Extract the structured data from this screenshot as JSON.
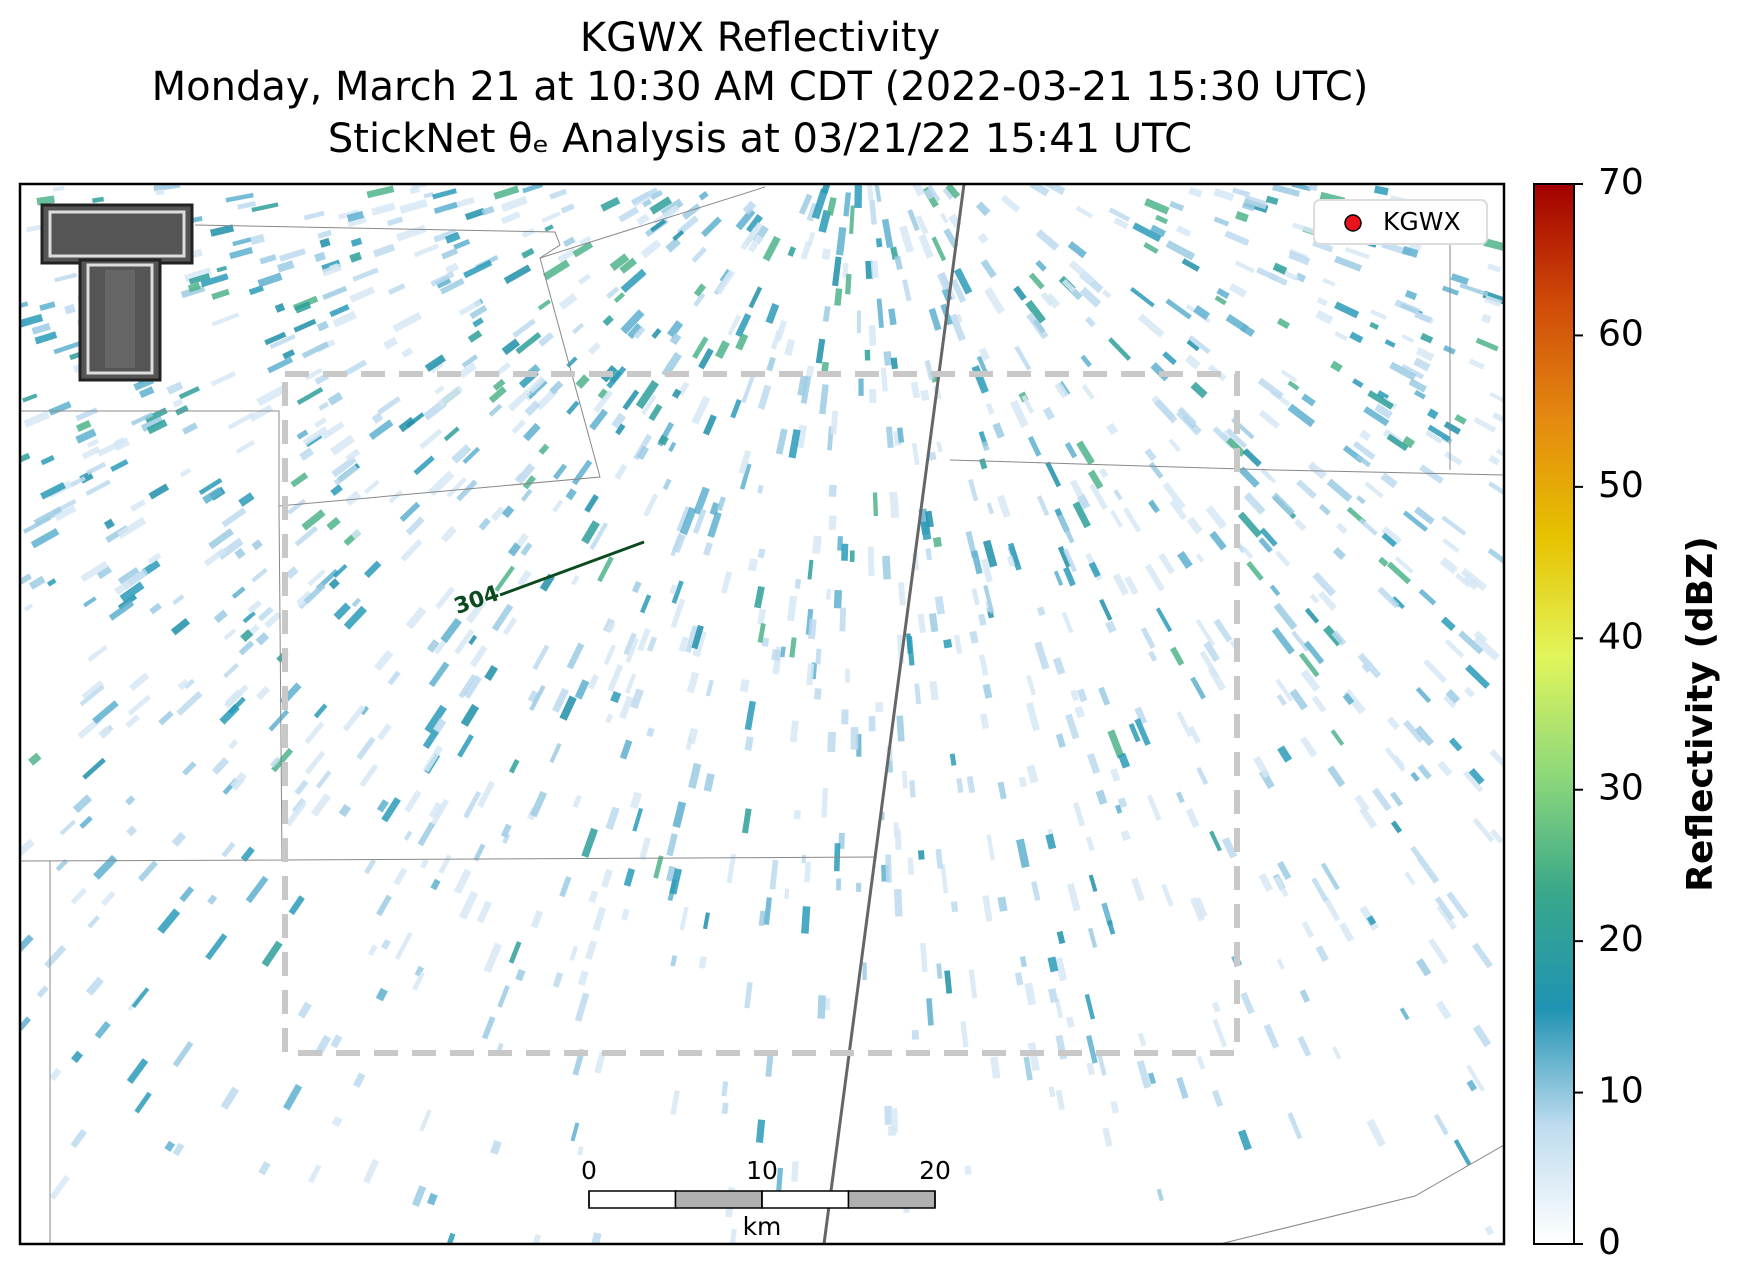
{
  "chart_data": {
    "type": "radar-map",
    "title": [
      "KGWX Reflectivity",
      "Monday, March 21 at 10:30 AM CDT (2022-03-21 15:30 UTC)",
      "StickNet θₑ Analysis at 03/21/22 15:41 UTC"
    ],
    "legend": {
      "label": "KGWX",
      "color": "#e8141c",
      "position": "upper right"
    },
    "colorbar": {
      "label": "Reflectivity (dBZ)",
      "lim": [
        0,
        70
      ],
      "ticks": [
        0,
        10,
        20,
        30,
        40,
        50,
        60,
        70
      ],
      "colors": [
        "#ffffff",
        "#bfdcef",
        "#1f93b3",
        "#3aa88a",
        "#8fd97a",
        "#e2f55a",
        "#e6c200",
        "#e48a10",
        "#cf4a08",
        "#a30000"
      ]
    },
    "contour_label": "304",
    "scale_bar": {
      "lim": [
        0,
        20
      ],
      "ticks": [
        0,
        10,
        20
      ],
      "unit": "km"
    }
  }
}
